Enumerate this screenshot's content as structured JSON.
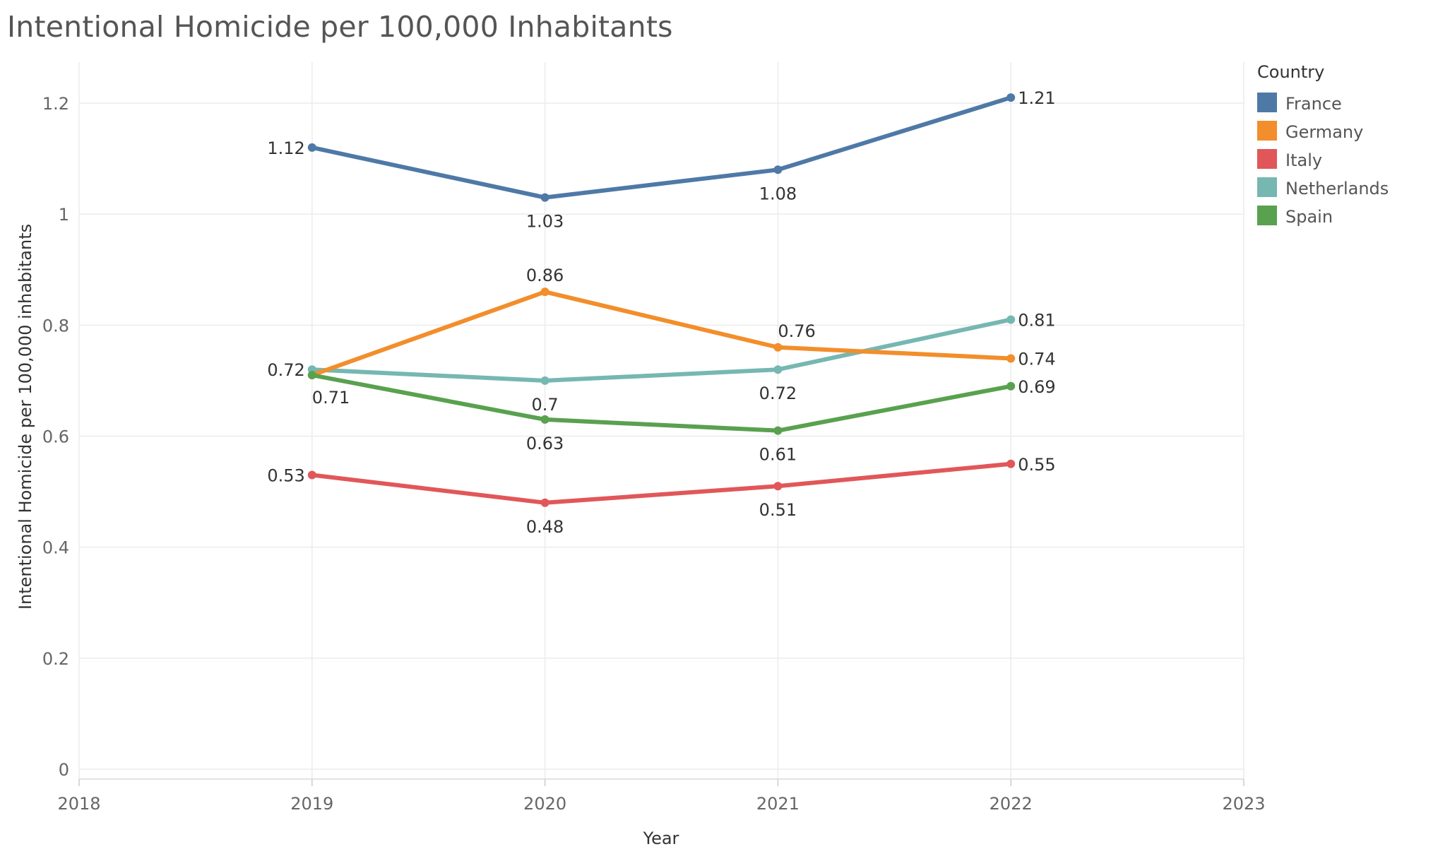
{
  "chart_data": {
    "type": "line",
    "title": "Intentional Homicide per 100,000 Inhabitants",
    "xlabel": "Year",
    "ylabel": "Intentional Homicide per 100,000 inhabitants",
    "x": [
      2019,
      2020,
      2021,
      2022
    ],
    "x_ticks": [
      "2018",
      "2019",
      "2020",
      "2021",
      "2022",
      "2023"
    ],
    "y_ticks": [
      "0",
      "0.2",
      "0.4",
      "0.6",
      "0.8",
      "1",
      "1.2"
    ],
    "xlim": [
      2018,
      2023
    ],
    "ylim": [
      0,
      1.2
    ],
    "grid": true,
    "legend": {
      "title": "Country",
      "position": "top-right"
    },
    "series": [
      {
        "name": "France",
        "color": "#4e79a7",
        "values": [
          1.12,
          1.03,
          1.08,
          1.21
        ],
        "labels": [
          "1.12",
          "1.03",
          "1.08",
          "1.21"
        ]
      },
      {
        "name": "Germany",
        "color": "#f28e2b",
        "values": [
          0.71,
          0.86,
          0.76,
          0.74
        ],
        "labels": [
          "0.71",
          "0.86",
          "0.76",
          "0.74"
        ]
      },
      {
        "name": "Italy",
        "color": "#e15759",
        "values": [
          0.53,
          0.48,
          0.51,
          0.55
        ],
        "labels": [
          "0.53",
          "0.48",
          "0.51",
          "0.55"
        ]
      },
      {
        "name": "Netherlands",
        "color": "#76b7b2",
        "values": [
          0.72,
          0.7,
          0.72,
          0.81
        ],
        "labels": [
          "0.72",
          "0.7",
          "0.72",
          "0.81"
        ]
      },
      {
        "name": "Spain",
        "color": "#59a14f",
        "values": [
          0.71,
          0.63,
          0.61,
          0.69
        ],
        "labels": [
          "",
          "0.63",
          "0.61",
          "0.69"
        ]
      }
    ]
  }
}
